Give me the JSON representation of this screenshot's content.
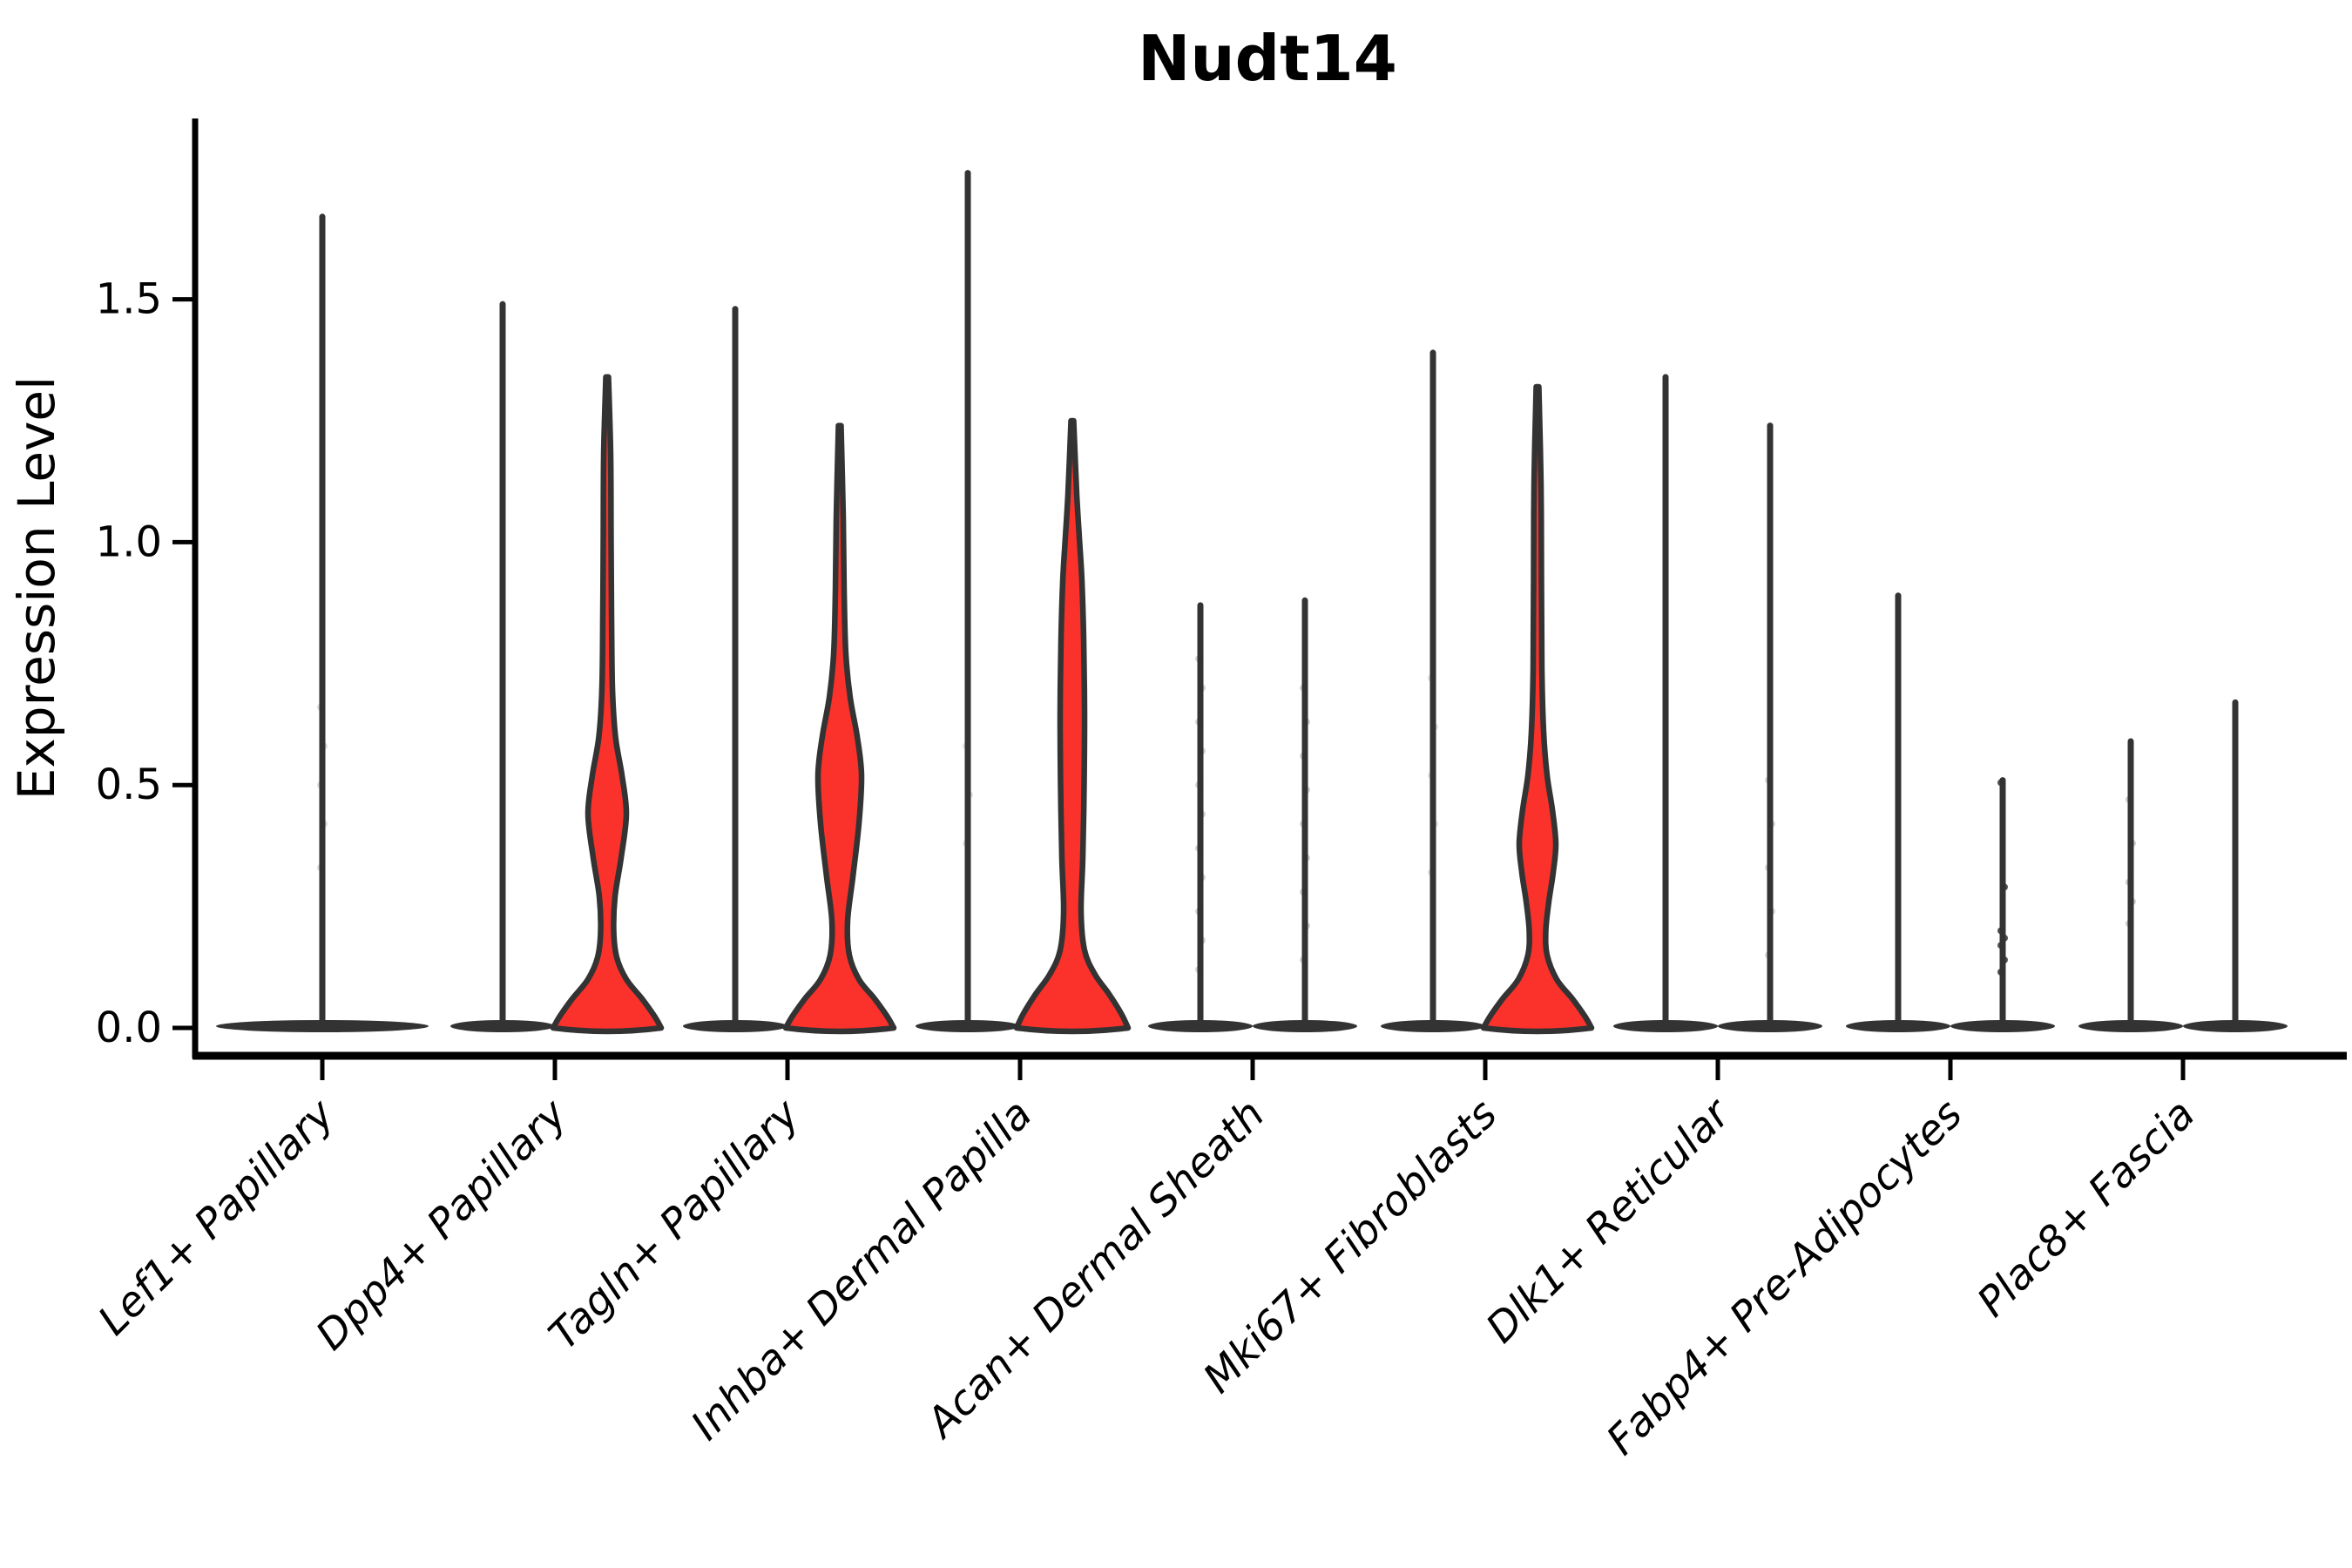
{
  "title": "Nudt14",
  "ylabel": "Expression Level",
  "colors": {
    "violin_fill": "#fa322b",
    "outline": "#333333",
    "axis": "#000000",
    "background": "#ffffff"
  },
  "chart_data": {
    "type": "violin",
    "title": "Nudt14",
    "xlabel": "",
    "ylabel": "Expression Level",
    "ylim": [
      -0.09,
      1.87
    ],
    "yticks": [
      "0.0",
      "0.5",
      "1.0",
      "1.5"
    ],
    "ytick_values": [
      0.0,
      0.5,
      1.0,
      1.5
    ],
    "grid": false,
    "legend": "none",
    "categories": [
      "Lef1+ Papillary",
      "Dpp4+ Papillary",
      "Tagln+ Papillary",
      "Inhba+ Dermal Papilla",
      "Acan+ Dermal Sheath",
      "Mki67+ Fibroblasts",
      "Dlk1+ Reticular",
      "Fabp4+ Pre-Adipocytes",
      "Plac8+ Fascia"
    ],
    "description": "Violin plot of Nudt14 expression level per fibroblast cluster; most cells at 0 (flat bases), thin density spikes to the maximum expression, red-filled violins where expressing fraction is substantial",
    "groups": [
      {
        "category": "Lef1+ Papillary",
        "violins": [
          {
            "style": "spike",
            "offset": 0,
            "max": 1.67,
            "half_width": 122,
            "dots": {
              "values": [
                0.33,
                0.42,
                0.5,
                0.58,
                0.66
              ],
              "opacity": 0.18
            }
          }
        ]
      },
      {
        "category": "Dpp4+ Papillary",
        "violins": [
          {
            "style": "spike",
            "offset": -60,
            "max": 1.49,
            "half_width": 60
          },
          {
            "style": "filled",
            "offset": 60,
            "max": 1.34,
            "profile": [
              [
                0,
                62
              ],
              [
                0.025,
                54
              ],
              [
                0.06,
                40
              ],
              [
                0.1,
                22
              ],
              [
                0.145,
                11
              ],
              [
                0.2,
                7.5
              ],
              [
                0.27,
                9
              ],
              [
                0.35,
                16
              ],
              [
                0.44,
                22
              ],
              [
                0.52,
                17
              ],
              [
                0.6,
                9.5
              ],
              [
                0.7,
                6
              ],
              [
                0.85,
                5
              ],
              [
                1.0,
                4.5
              ],
              [
                1.18,
                4
              ],
              [
                1.34,
                1.5
              ]
            ]
          }
        ]
      },
      {
        "category": "Tagln+ Papillary",
        "violins": [
          {
            "style": "spike",
            "offset": -60,
            "max": 1.48,
            "half_width": 60
          },
          {
            "style": "filled",
            "offset": 60,
            "max": 1.24,
            "profile": [
              [
                0,
                62
              ],
              [
                0.025,
                54
              ],
              [
                0.06,
                40
              ],
              [
                0.1,
                22
              ],
              [
                0.15,
                11
              ],
              [
                0.22,
                9
              ],
              [
                0.31,
                15
              ],
              [
                0.42,
                22
              ],
              [
                0.52,
                25
              ],
              [
                0.6,
                20
              ],
              [
                0.68,
                12
              ],
              [
                0.77,
                7
              ],
              [
                0.9,
                5
              ],
              [
                1.05,
                4
              ],
              [
                1.24,
                1.5
              ]
            ]
          }
        ]
      },
      {
        "category": "Inhba+ Dermal Papilla",
        "violins": [
          {
            "style": "spike",
            "offset": -60,
            "max": 1.76,
            "half_width": 60,
            "dots": {
              "values": [
                0.38,
                0.48,
                0.58
              ],
              "opacity": 0.15
            }
          },
          {
            "style": "filled",
            "offset": 60,
            "max": 1.25,
            "profile": [
              [
                0,
                64
              ],
              [
                0.03,
                56
              ],
              [
                0.07,
                42
              ],
              [
                0.11,
                26
              ],
              [
                0.16,
                14
              ],
              [
                0.24,
                10
              ],
              [
                0.35,
                12
              ],
              [
                0.5,
                13.5
              ],
              [
                0.65,
                14
              ],
              [
                0.8,
                13
              ],
              [
                0.92,
                11
              ],
              [
                1.01,
                8
              ],
              [
                1.1,
                5
              ],
              [
                1.25,
                1.5
              ]
            ]
          }
        ]
      },
      {
        "category": "Acan+ Dermal Sheath",
        "violins": [
          {
            "style": "spike",
            "offset": -60,
            "max": 0.87,
            "half_width": 60,
            "dots": {
              "values": [
                0.12,
                0.18,
                0.24,
                0.31,
                0.37,
                0.44,
                0.5,
                0.57,
                0.63,
                0.7,
                0.76
              ],
              "opacity": 0.22
            }
          },
          {
            "style": "spike",
            "offset": 60,
            "max": 0.88,
            "half_width": 60,
            "dots": {
              "values": [
                0.14,
                0.21,
                0.28,
                0.35,
                0.42,
                0.49,
                0.56,
                0.63,
                0.7
              ],
              "opacity": 0.22
            }
          }
        ]
      },
      {
        "category": "Mki67+ Fibroblasts",
        "violins": [
          {
            "style": "spike",
            "offset": -60,
            "max": 1.39,
            "half_width": 60,
            "dots": {
              "values": [
                0.32,
                0.42,
                0.52,
                0.62,
                0.72
              ],
              "opacity": 0.15
            }
          },
          {
            "style": "filled",
            "offset": 60,
            "max": 1.32,
            "profile": [
              [
                0,
                62
              ],
              [
                0.025,
                54
              ],
              [
                0.06,
                40
              ],
              [
                0.1,
                22
              ],
              [
                0.15,
                11
              ],
              [
                0.2,
                9.5
              ],
              [
                0.26,
                13
              ],
              [
                0.32,
                18
              ],
              [
                0.38,
                21
              ],
              [
                0.45,
                17
              ],
              [
                0.52,
                11
              ],
              [
                0.61,
                7
              ],
              [
                0.74,
                5
              ],
              [
                0.92,
                4.5
              ],
              [
                1.12,
                4
              ],
              [
                1.32,
                1.5
              ]
            ]
          }
        ]
      },
      {
        "category": "Dlk1+ Reticular",
        "violins": [
          {
            "style": "spike",
            "offset": -60,
            "max": 1.34,
            "half_width": 60
          },
          {
            "style": "spike",
            "offset": 60,
            "max": 1.24,
            "half_width": 60,
            "dots": {
              "values": [
                0.15,
                0.24,
                0.33,
                0.42,
                0.51
              ],
              "opacity": 0.2
            }
          }
        ]
      },
      {
        "category": "Fabp4+ Pre-Adipocytes",
        "violins": [
          {
            "style": "spike",
            "offset": -60,
            "max": 0.89,
            "half_width": 60
          },
          {
            "style": "spike",
            "offset": 60,
            "max": 0.51,
            "half_width": 60,
            "dots": {
              "values": [
                0.505,
                0.29,
                0.2,
                0.185,
                0.17,
                0.14,
                0.115
              ],
              "opacity": 0.85
            }
          }
        ]
      },
      {
        "category": "Plac8+ Fascia",
        "violins": [
          {
            "style": "spike",
            "offset": -60,
            "max": 0.59,
            "half_width": 60,
            "dots": {
              "values": [
                0.47,
                0.38,
                0.3,
                0.26,
                0.215
              ],
              "opacity": 0.25
            }
          },
          {
            "style": "spike",
            "offset": 60,
            "max": 0.67,
            "half_width": 60
          }
        ]
      }
    ]
  }
}
